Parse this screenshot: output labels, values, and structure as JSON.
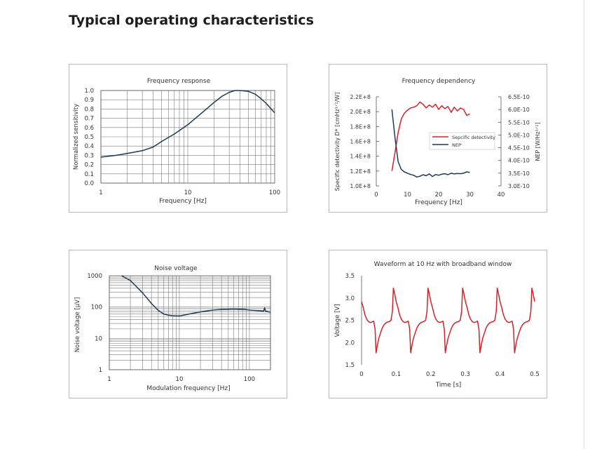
{
  "page": {
    "title": "Typical operating characteristics"
  },
  "chart_data": [
    {
      "id": "frequency-response",
      "type": "line",
      "title": "Frequency response",
      "xlabel": "Frequency [Hz]",
      "ylabel": "Normalized sensitivity",
      "xscale": "log",
      "xlim": [
        1,
        100
      ],
      "ylim": [
        0,
        1
      ],
      "xticks": [
        "1",
        "10",
        "100"
      ],
      "yticks": [
        "0.0",
        "0.1",
        "0.2",
        "0.3",
        "0.4",
        "0.5",
        "0.6",
        "0.7",
        "0.8",
        "0.9",
        "1.0"
      ],
      "grid": true,
      "color": "#1b3a55",
      "series": [
        {
          "x": [
            1,
            1.5,
            2,
            3,
            4,
            5,
            7,
            10,
            15,
            20,
            25,
            30,
            35,
            40,
            50,
            60,
            70,
            80,
            100
          ],
          "y": [
            0.28,
            0.3,
            0.32,
            0.35,
            0.39,
            0.45,
            0.53,
            0.63,
            0.77,
            0.87,
            0.94,
            0.98,
            1.0,
            1.0,
            0.99,
            0.96,
            0.91,
            0.86,
            0.76
          ]
        }
      ]
    },
    {
      "id": "frequency-dependency",
      "type": "line",
      "title": "Frequency dependency",
      "xlabel": "Frequency [Hz]",
      "ylabel": "Specific detectivity D* [cmHz¹ᐟ²/W]",
      "y2label": "NEP [W/Hz¹ᐟ²]",
      "xlim": [
        0,
        40
      ],
      "ylim": [
        100000000.0,
        220000000.0
      ],
      "y2lim": [
        3e-10,
        6.5e-10
      ],
      "xticks": [
        "0",
        "10",
        "20",
        "30",
        "40"
      ],
      "yticks": [
        "1.0E+8",
        "1.2E+8",
        "1.4E+8",
        "1.6E+8",
        "1.8E+8",
        "2.0E+8",
        "2.2E+8"
      ],
      "y2ticks": [
        "3.0E-10",
        "3.5E-10",
        "4.0E-10",
        "4.5E-10",
        "5.0E-10",
        "5.5E-10",
        "6.0E-10",
        "6.5E-10"
      ],
      "grid": false,
      "legend": "right",
      "series": [
        {
          "name": "Sepcific detectivity",
          "axis": "left",
          "color": "#d1232a",
          "x": [
            5,
            6,
            7,
            8,
            9,
            10,
            11,
            12,
            13,
            14,
            15,
            16,
            17,
            18,
            19,
            20,
            21,
            22,
            23,
            24,
            25,
            26,
            27,
            28,
            29,
            30
          ],
          "y": [
            120000000.0,
            145000000.0,
            172000000.0,
            190000000.0,
            198000000.0,
            202000000.0,
            205000000.0,
            206000000.0,
            208000000.0,
            213000000.0,
            210000000.0,
            205000000.0,
            209000000.0,
            206000000.0,
            210000000.0,
            203000000.0,
            208000000.0,
            204000000.0,
            207000000.0,
            199000000.0,
            206000000.0,
            201000000.0,
            205000000.0,
            203000000.0,
            195000000.0,
            197000000.0
          ]
        },
        {
          "name": "NEP",
          "axis": "right",
          "color": "#1b3a55",
          "x": [
            5,
            6,
            7,
            8,
            9,
            10,
            11,
            12,
            13,
            14,
            15,
            16,
            17,
            18,
            19,
            20,
            21,
            22,
            23,
            24,
            25,
            26,
            27,
            28,
            29,
            30
          ],
          "y": [
            6e-10,
            4.9e-10,
            3.95e-10,
            3.65e-10,
            3.55e-10,
            3.5e-10,
            3.45e-10,
            3.42e-10,
            3.35e-10,
            3.38e-10,
            3.44e-10,
            3.4e-10,
            3.47e-10,
            3.37e-10,
            3.45e-10,
            3.42e-10,
            3.46e-10,
            3.48e-10,
            3.44e-10,
            3.5e-10,
            3.47e-10,
            3.49e-10,
            3.48e-10,
            3.5e-10,
            3.55e-10,
            3.53e-10
          ]
        }
      ]
    },
    {
      "id": "noise-voltage",
      "type": "line",
      "title": "Noise voltage",
      "xlabel": "Modulation frequency [Hz]",
      "ylabel": "Noise voltage [µV]",
      "xscale": "log",
      "yscale": "log",
      "xlim": [
        1,
        200
      ],
      "ylim": [
        1,
        1000
      ],
      "xticks": [
        "1",
        "10",
        "100"
      ],
      "yticks": [
        "1",
        "10",
        "100",
        "1000"
      ],
      "grid": true,
      "color": "#1b3a55",
      "series": [
        {
          "x": [
            1.5,
            2,
            3,
            4,
            5,
            6,
            7,
            8,
            10,
            12,
            15,
            20,
            25,
            30,
            40,
            50,
            60,
            70,
            80,
            100,
            120,
            140,
            160,
            165,
            170,
            200
          ],
          "y": [
            1000,
            700,
            280,
            130,
            78,
            60,
            55,
            53,
            52,
            56,
            62,
            70,
            75,
            80,
            84,
            85,
            87,
            85,
            86,
            80,
            78,
            76,
            74,
            95,
            74,
            68
          ]
        }
      ]
    },
    {
      "id": "waveform",
      "type": "line",
      "title": "Waveform at 10 Hz with broadband window",
      "xlabel": "Time [s]",
      "ylabel": "Voltage [V]",
      "xlim": [
        0,
        0.5
      ],
      "ylim": [
        1.5,
        3.5
      ],
      "xticks": [
        "0",
        "0.1",
        "0.2",
        "0.3",
        "0.4",
        "0.5"
      ],
      "yticks": [
        "1.5",
        "2.0",
        "2.5",
        "3.0",
        "3.5"
      ],
      "grid": false,
      "color": "#d1232a",
      "period": 0.1,
      "series": [
        {
          "x": [
            0,
            0.005,
            0.01,
            0.015,
            0.02,
            0.025,
            0.03,
            0.035,
            0.039,
            0.042,
            0.046,
            0.05,
            0.055,
            0.06,
            0.065,
            0.07,
            0.075,
            0.08,
            0.085,
            0.089,
            0.092,
            0.095,
            0.1
          ],
          "y": [
            2.92,
            2.78,
            2.62,
            2.52,
            2.47,
            2.45,
            2.46,
            2.48,
            2.3,
            1.77,
            1.95,
            2.1,
            2.22,
            2.33,
            2.4,
            2.44,
            2.46,
            2.47,
            2.5,
            2.7,
            3.22,
            3.12,
            2.92
          ]
        }
      ]
    }
  ]
}
